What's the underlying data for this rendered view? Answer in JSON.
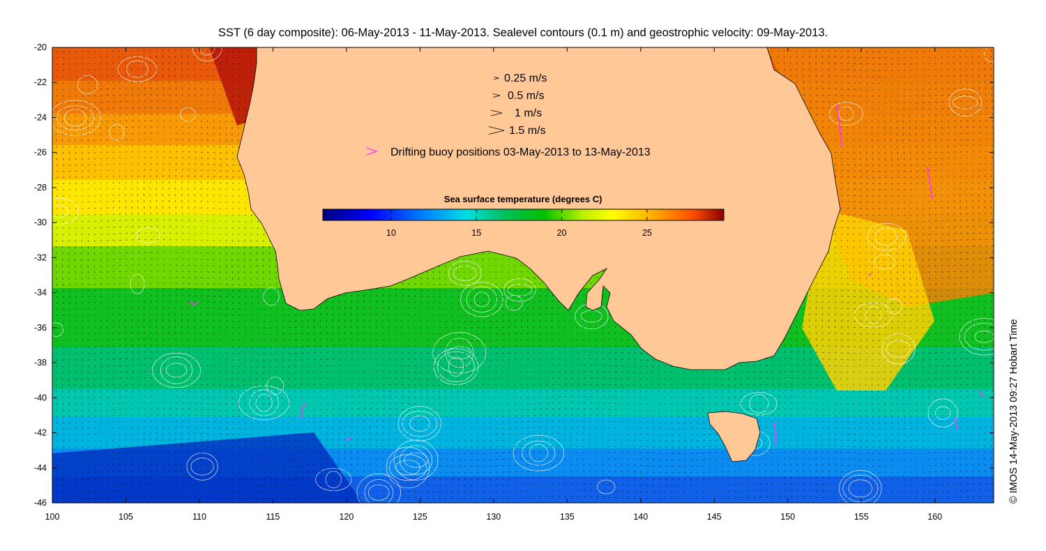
{
  "title": "SST (6 day composite): 06-May-2013 - 11-May-2013. Sealevel contours (0.1 m) and geostrophic velocity: 09-May-2013.",
  "credit": "© IMOS 14-May-2013 09:27 Hobart Time",
  "map": {
    "lon_range": [
      100,
      164
    ],
    "lat_range": [
      -46,
      -20
    ],
    "x_ticks": [
      100,
      105,
      110,
      115,
      120,
      125,
      130,
      135,
      140,
      145,
      150,
      155,
      160
    ],
    "y_ticks": [
      -20,
      -22,
      -24,
      -26,
      -28,
      -30,
      -32,
      -34,
      -36,
      -38,
      -40,
      -42,
      -44,
      -46
    ],
    "land_color": "#ffc896",
    "contour_color": "#ffffff",
    "vector_color": "#000000",
    "buoy_color": "#ff33ff"
  },
  "legend": {
    "velocity_scale": [
      {
        "label": "0.25 m/s",
        "speed": 0.25
      },
      {
        "label": "0.5 m/s",
        "speed": 0.5
      },
      {
        "label": "1 m/s",
        "speed": 1
      },
      {
        "label": "1.5 m/s",
        "speed": 1.5
      }
    ],
    "buoy_label": "Drifting buoy positions 03-May-2013 to 13-May-2013"
  },
  "colorbar": {
    "title": "Sea surface temperature (degrees C)",
    "range": [
      6,
      29.5
    ],
    "ticks": [
      10,
      15,
      20,
      25
    ]
  }
}
